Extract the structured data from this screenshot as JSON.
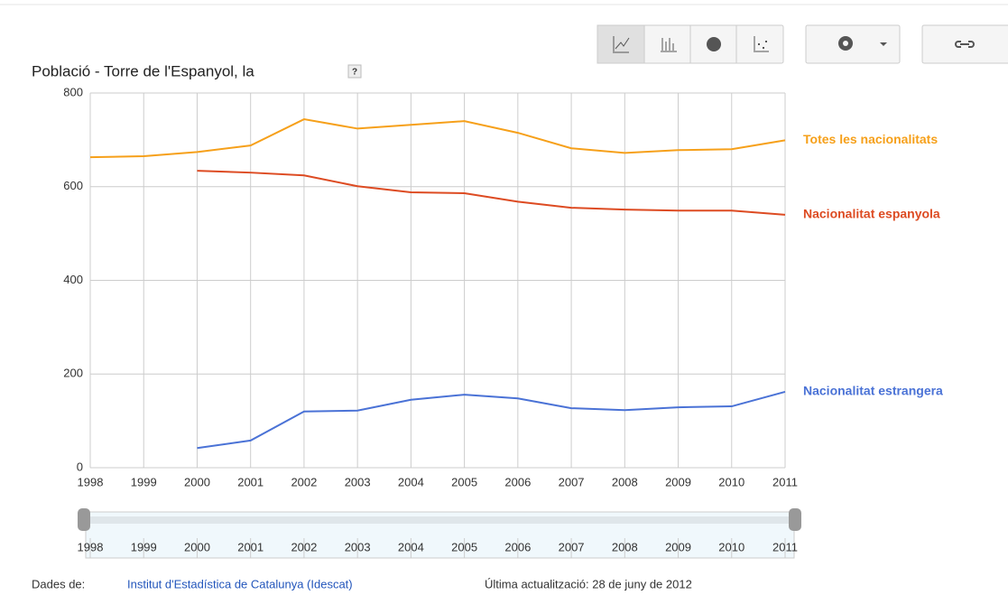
{
  "header": {
    "title": "Població - Torre de l'Espanyol, la",
    "help": "?"
  },
  "chart_data": {
    "type": "line",
    "x": [
      1998,
      1999,
      2000,
      2001,
      2002,
      2003,
      2004,
      2005,
      2006,
      2007,
      2008,
      2009,
      2010,
      2011
    ],
    "xlim": [
      1998,
      2011
    ],
    "xticks": [
      1998,
      1999,
      2000,
      2001,
      2002,
      2003,
      2004,
      2005,
      2006,
      2007,
      2008,
      2009,
      2010,
      2011
    ],
    "ylim": [
      0,
      800
    ],
    "yticks": [
      0,
      200,
      400,
      600,
      800
    ],
    "grid": true,
    "series": [
      {
        "name": "Totes les nacionalitats",
        "color": "#f6a01a",
        "values": [
          663,
          665,
          674,
          688,
          744,
          724,
          732,
          740,
          715,
          682,
          672,
          678,
          680,
          699
        ]
      },
      {
        "name": "Nacionalitat espanyola",
        "color": "#dd4b22",
        "values": [
          null,
          null,
          634,
          630,
          624,
          601,
          588,
          586,
          568,
          555,
          551,
          549,
          549,
          540
        ]
      },
      {
        "name": "Nacionalitat estrangera",
        "color": "#4a72d6",
        "values": [
          null,
          null,
          42,
          58,
          120,
          122,
          145,
          156,
          148,
          127,
          123,
          129,
          131,
          162
        ]
      }
    ]
  },
  "footer": {
    "source_label": "Dades de:",
    "source_link": "Institut d'Estadística de Catalunya (Idescat)",
    "updated": "Última actualització: 28 de juny de 2012"
  }
}
